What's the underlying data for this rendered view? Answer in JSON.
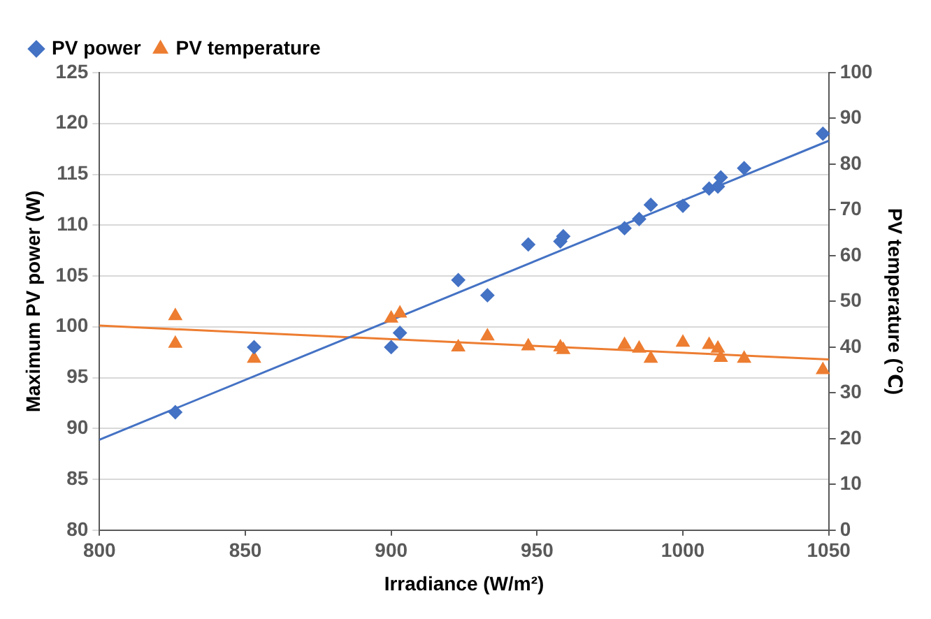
{
  "chart_data": {
    "type": "scatter",
    "xlabel": "Irradiance (W/m²)",
    "ylabel": "Maximum PV power (W)",
    "y2label": "PV temperature (℃)",
    "xlim": [
      800,
      1050
    ],
    "xticks": [
      800,
      850,
      900,
      950,
      1000,
      1050
    ],
    "ylim": [
      80,
      125
    ],
    "yticks": [
      80,
      85,
      90,
      95,
      100,
      105,
      110,
      115,
      120,
      125
    ],
    "y2lim": [
      0,
      100
    ],
    "y2ticks": [
      0,
      10,
      20,
      30,
      40,
      50,
      60,
      70,
      80,
      90,
      100
    ],
    "grid": "y",
    "legend": "top left",
    "series": [
      {
        "name": "PV power",
        "color": "#4472c4",
        "marker": "diamond",
        "x": [
          826,
          853,
          900,
          903,
          923,
          933,
          947,
          958,
          959,
          980,
          985,
          989,
          1000,
          1009,
          1012,
          1013,
          1021,
          1048
        ],
        "values": [
          91.6,
          98.0,
          98.0,
          99.4,
          104.6,
          103.1,
          108.1,
          108.4,
          108.9,
          109.7,
          110.6,
          112.0,
          111.9,
          113.6,
          113.8,
          114.7,
          115.6,
          119.0
        ]
      },
      {
        "name": "PV temperature",
        "color": "#ed7d31",
        "marker": "triangle",
        "axis": "y2",
        "x": [
          826,
          826,
          853,
          900,
          903,
          923,
          933,
          947,
          958,
          959,
          980,
          985,
          989,
          1000,
          1009,
          1012,
          1013,
          1021,
          1048
        ],
        "values": [
          46.8,
          40.8,
          37.5,
          46.3,
          47.4,
          40.0,
          42.4,
          40.2,
          40.0,
          39.4,
          40.5,
          39.7,
          37.5,
          41.0,
          40.5,
          39.7,
          37.7,
          37.5,
          35.0
        ]
      },
      {
        "type": "line",
        "color": "#4472c4",
        "marker": "none",
        "x": [
          800,
          1050
        ],
        "values": [
          88.9,
          118.3
        ]
      },
      {
        "type": "line",
        "color": "#ed7d31",
        "marker": "none",
        "axis": "y2",
        "x": [
          800,
          1050
        ],
        "values": [
          44.7,
          37.3
        ]
      }
    ]
  }
}
